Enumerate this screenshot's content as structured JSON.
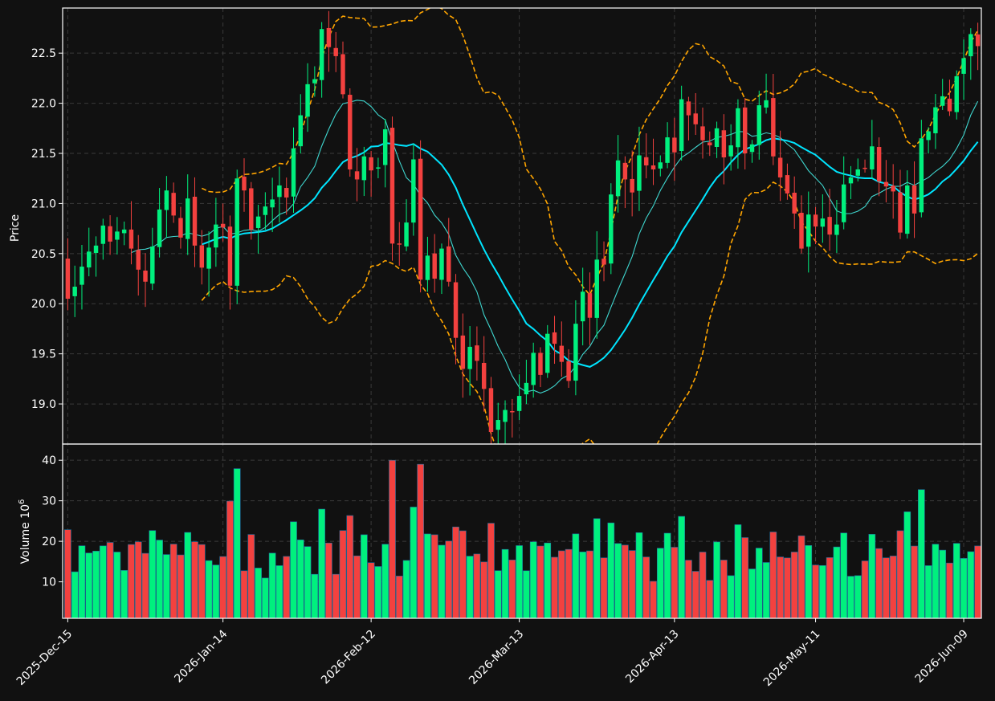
{
  "chart_data": {
    "type": "candlestick",
    "dates": [
      "2025-12-15",
      "2025-12-16",
      "2025-12-17",
      "2025-12-18",
      "2025-12-19",
      "2025-12-22",
      "2025-12-23",
      "2025-12-24",
      "2025-12-25",
      "2025-12-26",
      "2025-12-29",
      "2025-12-30",
      "2025-12-31",
      "2026-01-01",
      "2026-01-02",
      "2026-01-05",
      "2026-01-06",
      "2026-01-07",
      "2026-01-08",
      "2026-01-09",
      "2026-01-12",
      "2026-01-13",
      "2026-01-14",
      "2026-01-15",
      "2026-01-16",
      "2026-01-19",
      "2026-01-20",
      "2026-01-21",
      "2026-01-22",
      "2026-01-23",
      "2026-01-26",
      "2026-01-27",
      "2026-01-28",
      "2026-01-29",
      "2026-01-30",
      "2026-02-02",
      "2026-02-03",
      "2026-02-04",
      "2026-02-05",
      "2026-02-06",
      "2026-02-09",
      "2026-02-10",
      "2026-02-11",
      "2026-02-12",
      "2026-02-13",
      "2026-02-16",
      "2026-02-17",
      "2026-02-18",
      "2026-02-19",
      "2026-02-20",
      "2026-02-23",
      "2026-02-24",
      "2026-02-25",
      "2026-02-26",
      "2026-02-27",
      "2026-03-02",
      "2026-03-03",
      "2026-03-04",
      "2026-03-05",
      "2026-03-06",
      "2026-03-09",
      "2026-03-10",
      "2026-03-11",
      "2026-03-12",
      "2026-03-13",
      "2026-03-16",
      "2026-03-17",
      "2026-03-18",
      "2026-03-19",
      "2026-03-20",
      "2026-03-23",
      "2026-03-24",
      "2026-03-25",
      "2026-03-26",
      "2026-03-27",
      "2026-03-30",
      "2026-03-31",
      "2026-04-01",
      "2026-04-02",
      "2026-04-03",
      "2026-04-06",
      "2026-04-07",
      "2026-04-08",
      "2026-04-09",
      "2026-04-10",
      "2026-04-13",
      "2026-04-14",
      "2026-04-15",
      "2026-04-16",
      "2026-04-17",
      "2026-04-20",
      "2026-04-21",
      "2026-04-22",
      "2026-04-23",
      "2026-04-24",
      "2026-04-27",
      "2026-04-28",
      "2026-04-29",
      "2026-04-30",
      "2026-05-01",
      "2026-05-04",
      "2026-05-05",
      "2026-05-06",
      "2026-05-07",
      "2026-05-08",
      "2026-05-11",
      "2026-05-12",
      "2026-05-13",
      "2026-05-14",
      "2026-05-15",
      "2026-05-18",
      "2026-05-19",
      "2026-05-20",
      "2026-05-21",
      "2026-05-22",
      "2026-05-25",
      "2026-05-26",
      "2026-05-27",
      "2026-05-28",
      "2026-05-29",
      "2026-06-01",
      "2026-06-02",
      "2026-06-03",
      "2026-06-04",
      "2026-06-05",
      "2026-06-08",
      "2026-06-09",
      "2026-06-10",
      "2026-06-11",
      "2026-06-12"
    ],
    "close": [
      20.05,
      20.17,
      20.37,
      20.52,
      20.58,
      20.78,
      20.62,
      20.72,
      20.74,
      20.55,
      20.34,
      20.22,
      20.57,
      20.94,
      21.13,
      20.88,
      20.66,
      21.05,
      20.58,
      20.36,
      20.56,
      20.79,
      20.76,
      20.18,
      21.25,
      21.13,
      20.74,
      20.87,
      20.97,
      21.04,
      21.18,
      21.06,
      21.55,
      21.88,
      22.19,
      22.24,
      22.74,
      22.56,
      22.47,
      22.09,
      21.34,
      21.24,
      21.47,
      21.33,
      21.36,
      21.74,
      20.6,
      20.59,
      20.81,
      21.44,
      20.24,
      20.48,
      20.25,
      20.55,
      20.22,
      19.66,
      19.35,
      19.57,
      19.43,
      19.15,
      18.72,
      18.84,
      18.94,
      18.92,
      19.08,
      19.21,
      19.51,
      19.29,
      19.7,
      19.6,
      19.42,
      19.23,
      19.8,
      20.12,
      19.86,
      20.44,
      20.39,
      21.09,
      21.43,
      21.24,
      21.11,
      21.48,
      21.38,
      21.34,
      21.41,
      21.66,
      21.51,
      22.04,
      21.88,
      21.79,
      21.63,
      21.58,
      21.75,
      21.46,
      21.58,
      21.95,
      21.5,
      21.59,
      21.98,
      22.03,
      21.47,
      21.26,
      21.1,
      20.9,
      20.55,
      20.89,
      20.77,
      20.85,
      20.69,
      20.79,
      21.19,
      21.26,
      21.34,
      21.35,
      21.57,
      21.22,
      21.17,
      21.12,
      20.71,
      21.18,
      20.9,
      21.65,
      21.72,
      21.96,
      22.07,
      21.92,
      22.27,
      22.45,
      22.69,
      22.57
    ],
    "y_ticks": [
      19.0,
      19.5,
      20.0,
      20.5,
      21.0,
      21.5,
      22.0,
      22.5
    ],
    "volume_ticks": [
      10,
      20,
      30,
      40
    ],
    "x_tick_labels": [
      "2025-Dec-15",
      "2026-Jan-14",
      "2026-Feb-12",
      "2026-Mar-13",
      "2026-Apr-13",
      "2026-May-11",
      "2026-Jun-09"
    ],
    "ylabel": "Price",
    "volume_label": "Volume  10",
    "volume_exponent": "6",
    "overlays": [
      "moving average (short)",
      "moving average (long)",
      "bollinger bands"
    ],
    "ylim": [
      18.6,
      22.95
    ],
    "volume_ylim": [
      1,
      44
    ],
    "grid": true,
    "colors": {
      "up": "#00f07e",
      "down": "#f3413f",
      "ma_fast": "#3fd6cf",
      "ma_slow": "#00e5ff",
      "bands": "#ffa500",
      "background": "#111111",
      "grid": "#3a3a3a",
      "axis": "#ffffff"
    }
  }
}
